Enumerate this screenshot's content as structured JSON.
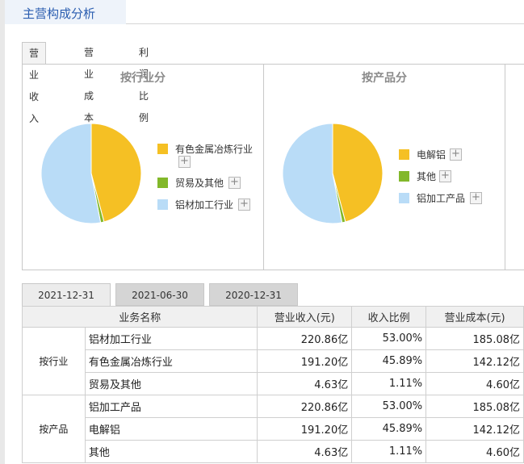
{
  "header": {
    "title": "主营构成分析"
  },
  "tabs": [
    {
      "label": "营业收入",
      "active": true
    },
    {
      "label": "营业成本",
      "active": false
    },
    {
      "label": "利润比例",
      "active": false
    }
  ],
  "colors": {
    "yellow": "#f5c024",
    "green": "#82b82a",
    "blue": "#b9dcf7",
    "accent": "#2a5db0"
  },
  "charts": {
    "industry": {
      "title": "按行业分",
      "legend": [
        {
          "label": "有色金属冶炼行业",
          "color": "#f5c024"
        },
        {
          "label": "贸易及其他",
          "color": "#82b82a"
        },
        {
          "label": "铝材加工行业",
          "color": "#b9dcf7"
        }
      ]
    },
    "product": {
      "title": "按产品分",
      "legend": [
        {
          "label": "电解铝",
          "color": "#f5c024"
        },
        {
          "label": "其他",
          "color": "#82b82a"
        },
        {
          "label": "铝加工产品",
          "color": "#b9dcf7"
        }
      ]
    }
  },
  "chart_data": [
    {
      "type": "pie",
      "title": "按行业分",
      "categories": [
        "有色金属冶炼行业",
        "贸易及其他",
        "铝材加工行业"
      ],
      "values": [
        45.89,
        1.11,
        53.0
      ],
      "colors": [
        "#f5c024",
        "#82b82a",
        "#b9dcf7"
      ],
      "legend": "right"
    },
    {
      "type": "pie",
      "title": "按产品分",
      "categories": [
        "电解铝",
        "其他",
        "铝加工产品"
      ],
      "values": [
        45.89,
        1.11,
        53.0
      ],
      "colors": [
        "#f5c024",
        "#82b82a",
        "#b9dcf7"
      ],
      "legend": "right"
    }
  ],
  "date_tabs": [
    {
      "label": "2021-12-31",
      "active": true
    },
    {
      "label": "2021-06-30",
      "active": false
    },
    {
      "label": "2020-12-31",
      "active": false
    }
  ],
  "table": {
    "headers": [
      "业务名称",
      "营业收入(元)",
      "收入比例",
      "营业成本(元)"
    ],
    "groups": [
      {
        "label": "按行业",
        "rows": [
          {
            "name": "铝材加工行业",
            "revenue": "220.86亿",
            "ratio": "53.00%",
            "cost": "185.08亿"
          },
          {
            "name": "有色金属冶炼行业",
            "revenue": "191.20亿",
            "ratio": "45.89%",
            "cost": "142.12亿"
          },
          {
            "name": "贸易及其他",
            "revenue": "4.63亿",
            "ratio": "1.11%",
            "cost": "4.60亿"
          }
        ]
      },
      {
        "label": "按产品",
        "rows": [
          {
            "name": "铝加工产品",
            "revenue": "220.86亿",
            "ratio": "53.00%",
            "cost": "185.08亿"
          },
          {
            "name": "电解铝",
            "revenue": "191.20亿",
            "ratio": "45.89%",
            "cost": "142.12亿"
          },
          {
            "name": "其他",
            "revenue": "4.63亿",
            "ratio": "1.11%",
            "cost": "4.60亿"
          }
        ]
      }
    ]
  }
}
